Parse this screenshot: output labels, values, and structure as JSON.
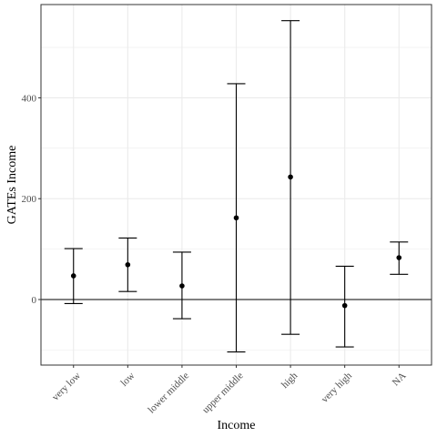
{
  "chart_data": {
    "type": "errorbar",
    "title": "",
    "xlabel": "Income",
    "ylabel": "GATEs Income",
    "categories": [
      "very low",
      "low",
      "lower middle",
      "upper middle",
      "high",
      "very high",
      "NA"
    ],
    "estimates": [
      47,
      69,
      27,
      162,
      243,
      -12,
      83
    ],
    "lower": [
      -8,
      16,
      -38,
      -104,
      -69,
      -94,
      50
    ],
    "upper": [
      101,
      122,
      94,
      428,
      553,
      66,
      114
    ],
    "ylim": [
      -130,
      585
    ],
    "yticks": [
      0,
      200,
      400
    ],
    "hline_y": 0,
    "grid": true,
    "theme": "bw",
    "colors": {
      "point": "#000000",
      "errorbar": "#000000",
      "grid": "#ebebeb",
      "panel_border": "#333333",
      "tick_label": "#4d4d4d"
    }
  }
}
